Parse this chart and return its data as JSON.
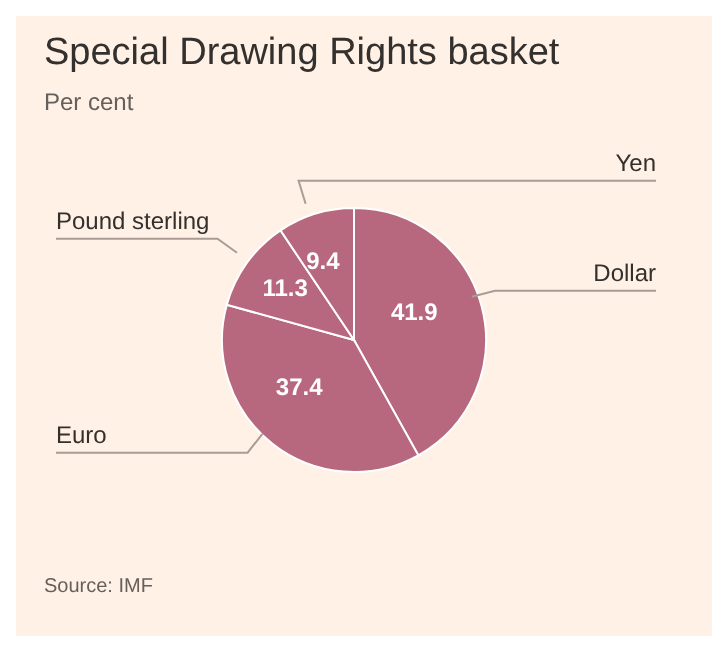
{
  "chart_data": {
    "type": "pie",
    "title": "Special Drawing Rights basket",
    "subtitle": "Per cent",
    "categories": [
      "Dollar",
      "Euro",
      "Pound sterling",
      "Yen"
    ],
    "values": [
      41.9,
      37.4,
      11.3,
      9.4
    ],
    "colors": [
      "#b7687f",
      "#b7687f",
      "#b7687f",
      "#b7687f"
    ],
    "data_labels": true,
    "annotations": [
      "Source: IMF"
    ]
  }
}
